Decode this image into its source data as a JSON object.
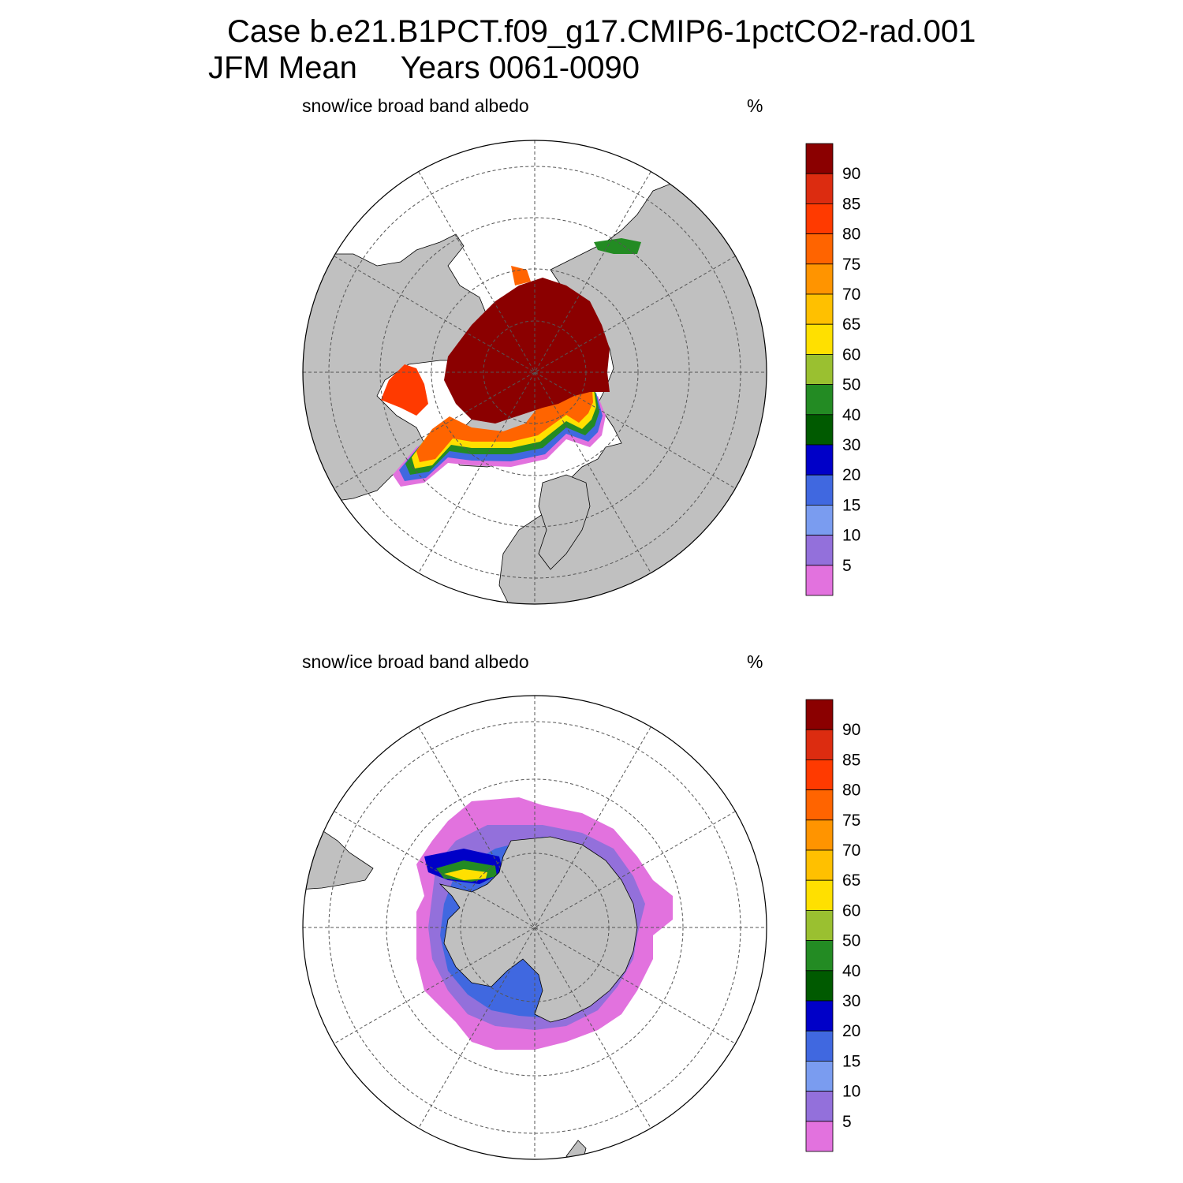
{
  "title": {
    "line1": "Case b.e21.B1PCT.f09_g17.CMIP6-1pctCO2-rad.001",
    "line2": "JFM Mean     Years 0061-0090"
  },
  "panels": [
    {
      "label": "snow/ice broad band albedo",
      "unit": "%",
      "hemisphere": "north"
    },
    {
      "label": "snow/ice broad band albedo",
      "unit": "%",
      "hemisphere": "south"
    }
  ],
  "colorbar": {
    "labels": [
      "90",
      "85",
      "80",
      "75",
      "70",
      "65",
      "60",
      "50",
      "40",
      "30",
      "20",
      "15",
      "10",
      "5"
    ],
    "colors_top_to_bottom": [
      "#8b0000",
      "#dc2c10",
      "#ff3a00",
      "#ff6400",
      "#ff9400",
      "#ffc000",
      "#ffe000",
      "#9ac030",
      "#238b23",
      "#005a00",
      "#0000c8",
      "#4068e0",
      "#7a9cf0",
      "#9370db",
      "#e272de"
    ]
  },
  "colors": {
    "land": "#c0c0c0",
    "ocean": "#ffffff",
    "grid": "#555555"
  }
}
